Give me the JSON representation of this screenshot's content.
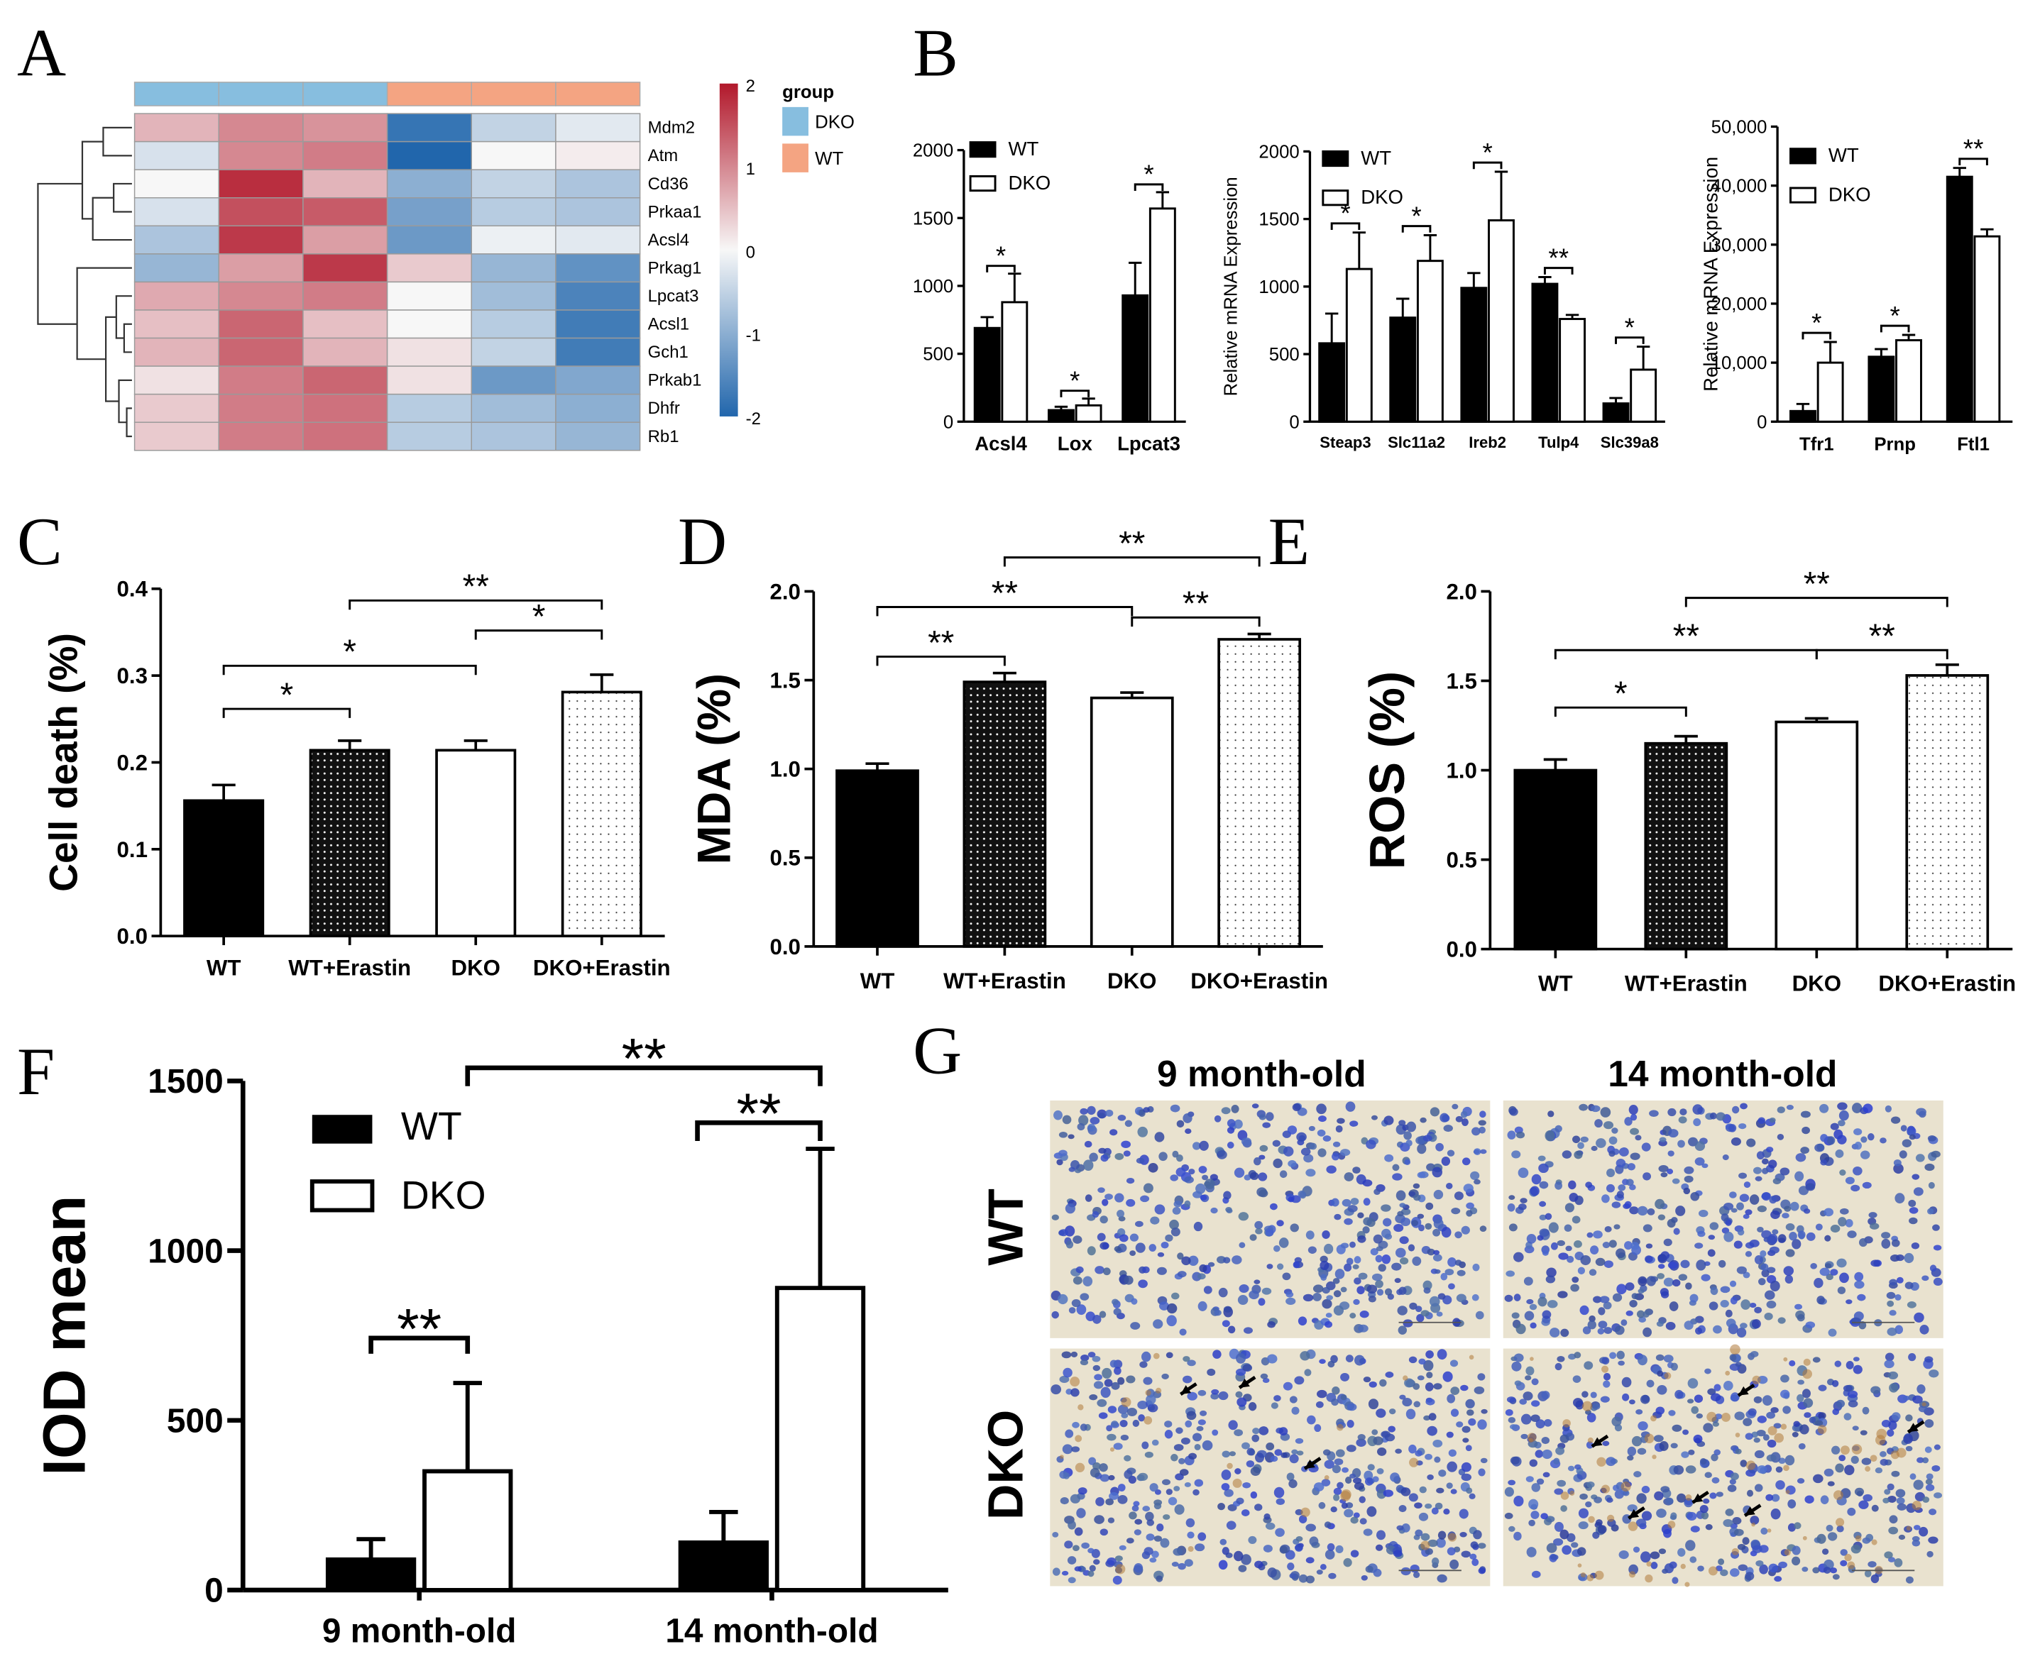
{
  "panel_labels": [
    "A",
    "B",
    "C",
    "D",
    "E",
    "F",
    "G"
  ],
  "heatmap": {
    "genes": [
      "Mdm2",
      "Atm",
      "Cd36",
      "Prkaa1",
      "Acsl4",
      "Prkag1",
      "Lpcat3",
      "Acsl1",
      "Gch1",
      "Prkab1",
      "Dhfr",
      "Rb1"
    ],
    "groups": [
      "DKO",
      "DKO",
      "DKO",
      "WT",
      "WT",
      "WT"
    ],
    "values": [
      [
        0.6,
        1.0,
        0.9,
        -1.8,
        -0.5,
        -0.2
      ],
      [
        -0.3,
        1.0,
        1.1,
        -2.0,
        0.0,
        0.1
      ],
      [
        0.0,
        1.8,
        0.6,
        -1.0,
        -0.5,
        -0.7
      ],
      [
        -0.3,
        1.5,
        1.4,
        -1.2,
        -0.6,
        -0.7
      ],
      [
        -0.7,
        1.7,
        0.8,
        -1.3,
        -0.1,
        -0.2
      ],
      [
        -0.9,
        0.8,
        1.7,
        0.4,
        -0.9,
        -1.4
      ],
      [
        0.7,
        1.0,
        1.1,
        0.0,
        -0.8,
        -1.6
      ],
      [
        0.5,
        1.3,
        0.5,
        0.0,
        -0.6,
        -1.7
      ],
      [
        0.6,
        1.3,
        0.6,
        0.2,
        -0.5,
        -1.7
      ],
      [
        0.2,
        1.1,
        1.3,
        0.2,
        -1.3,
        -1.1
      ],
      [
        0.4,
        1.1,
        1.2,
        -0.6,
        -0.8,
        -1.0
      ],
      [
        0.4,
        1.1,
        1.2,
        -0.6,
        -0.7,
        -0.9
      ]
    ],
    "legend_title": "group",
    "legend_items": [
      {
        "label": "DKO",
        "color": "#87bedf"
      },
      {
        "label": "WT",
        "color": "#f4a482"
      }
    ],
    "scale_ticks": [
      "2",
      "1",
      "0",
      "-1",
      "-2"
    ],
    "colors": {
      "high": "#b2182b",
      "mid": "#f7f7f7",
      "low": "#2166ac"
    }
  },
  "chart_data": [
    {
      "id": "B1",
      "type": "bar",
      "categories": [
        "Acsl4",
        "Lox",
        "Lpcat3"
      ],
      "series": [
        {
          "name": "WT",
          "values": [
            690,
            85,
            930
          ],
          "errors": [
            80,
            25,
            240
          ]
        },
        {
          "name": "DKO",
          "values": [
            880,
            120,
            1570
          ],
          "errors": [
            210,
            50,
            120
          ]
        }
      ],
      "ylim": [
        0,
        2000
      ],
      "yticks": [
        "0",
        "500",
        "1000",
        "1500",
        "2000"
      ],
      "ylabel": "",
      "legend": [
        "WT",
        "DKO"
      ],
      "significance": [
        {
          "cat": 0,
          "label": "*"
        },
        {
          "cat": 1,
          "label": "*"
        },
        {
          "cat": 2,
          "label": "*"
        }
      ]
    },
    {
      "id": "B2",
      "type": "bar",
      "categories": [
        "Steap3",
        "Slc11a2",
        "Ireb2",
        "Tulp4",
        "Slc39a8"
      ],
      "series": [
        {
          "name": "WT",
          "values": [
            580,
            770,
            990,
            1020,
            135
          ],
          "errors": [
            220,
            140,
            110,
            50,
            40
          ]
        },
        {
          "name": "DKO",
          "values": [
            1130,
            1190,
            1490,
            760,
            385
          ],
          "errors": [
            270,
            190,
            360,
            30,
            170
          ]
        }
      ],
      "ylim": [
        0,
        2000
      ],
      "yticks": [
        "0",
        "500",
        "1000",
        "1500",
        "2000"
      ],
      "ylabel": "Relative mRNA Expression",
      "legend": [
        "WT",
        "DKO"
      ],
      "significance": [
        {
          "cat": 0,
          "label": "*"
        },
        {
          "cat": 1,
          "label": "*"
        },
        {
          "cat": 2,
          "label": "*"
        },
        {
          "cat": 3,
          "label": "**"
        },
        {
          "cat": 4,
          "label": "*"
        }
      ]
    },
    {
      "id": "B3",
      "type": "bar",
      "categories": [
        "Tfr1",
        "Prnp",
        "Ftl1"
      ],
      "series": [
        {
          "name": "WT",
          "values": [
            1800,
            11000,
            41500
          ],
          "errors": [
            1200,
            1300,
            1500
          ]
        },
        {
          "name": "DKO",
          "values": [
            10000,
            13800,
            31400
          ],
          "errors": [
            3500,
            900,
            1200
          ]
        }
      ],
      "ylim": [
        0,
        50000
      ],
      "yticks": [
        "0",
        "10,000",
        "20,000",
        "30,000",
        "40,000",
        "50,000"
      ],
      "ylabel": "Relative mRNA Expression",
      "legend": [
        "WT",
        "DKO"
      ],
      "significance": [
        {
          "cat": 0,
          "label": "*"
        },
        {
          "cat": 1,
          "label": "*"
        },
        {
          "cat": 2,
          "label": "**"
        }
      ]
    },
    {
      "id": "C",
      "type": "bar",
      "categories": [
        "WT",
        "WT+Erastin",
        "DKO",
        "DKO+Erastin"
      ],
      "values": [
        0.156,
        0.214,
        0.214,
        0.281
      ],
      "errors": [
        0.018,
        0.011,
        0.011,
        0.02
      ],
      "ylim": [
        0,
        0.4
      ],
      "yticks": [
        "0.0",
        "0.1",
        "0.2",
        "0.3",
        "0.4"
      ],
      "ylabel": "Cell death (%)",
      "brackets": [
        {
          "from": 0,
          "to": 1,
          "label": "*"
        },
        {
          "from": 0,
          "to": 2,
          "label": "*"
        },
        {
          "from": 2,
          "to": 3,
          "label": "*"
        },
        {
          "from": 1,
          "to": 3,
          "label": "**"
        }
      ]
    },
    {
      "id": "D",
      "type": "bar",
      "categories": [
        "WT",
        "WT+Erastin",
        "DKO",
        "DKO+Erastin"
      ],
      "values": [
        0.99,
        1.49,
        1.4,
        1.73
      ],
      "errors": [
        0.04,
        0.05,
        0.03,
        0.03
      ],
      "ylim": [
        0,
        2.0
      ],
      "yticks": [
        "0.0",
        "0.5",
        "1.0",
        "1.5",
        "2.0"
      ],
      "ylabel": "MDA (%)",
      "brackets": [
        {
          "from": 0,
          "to": 1,
          "label": "**"
        },
        {
          "from": 0,
          "to": 2,
          "label": "**"
        },
        {
          "from": 2,
          "to": 3,
          "label": "**"
        },
        {
          "from": 1,
          "to": 3,
          "label": "**"
        }
      ]
    },
    {
      "id": "E",
      "type": "bar",
      "categories": [
        "WT",
        "WT+Erastin",
        "DKO",
        "DKO+Erastin"
      ],
      "values": [
        1.0,
        1.15,
        1.27,
        1.53
      ],
      "errors": [
        0.06,
        0.04,
        0.02,
        0.06
      ],
      "ylim": [
        0,
        2.0
      ],
      "yticks": [
        "0.0",
        "0.5",
        "1.0",
        "1.5",
        "2.0"
      ],
      "ylabel": "ROS (%)",
      "brackets": [
        {
          "from": 0,
          "to": 1,
          "label": "*"
        },
        {
          "from": 0,
          "to": 2,
          "label": "**"
        },
        {
          "from": 2,
          "to": 3,
          "label": "**"
        },
        {
          "from": 1,
          "to": 3,
          "label": "**"
        }
      ]
    },
    {
      "id": "F",
      "type": "bar",
      "categories": [
        "9 month-old",
        "14 month-old"
      ],
      "series": [
        {
          "name": "WT",
          "values": [
            90,
            140
          ],
          "errors": [
            60,
            90
          ]
        },
        {
          "name": "DKO",
          "values": [
            350,
            890
          ],
          "errors": [
            260,
            410
          ]
        }
      ],
      "ylim": [
        0,
        1500
      ],
      "yticks": [
        "0",
        "500",
        "1000",
        "1500"
      ],
      "ylabel": "IOD mean",
      "legend": [
        "WT",
        "DKO"
      ],
      "significance": [
        {
          "label": "**"
        },
        {
          "label": "**"
        },
        {
          "label": "**"
        }
      ]
    }
  ],
  "histology": {
    "col_labels": [
      "9 month-old",
      "14 month-old"
    ],
    "row_labels": [
      "WT",
      "DKO"
    ]
  }
}
